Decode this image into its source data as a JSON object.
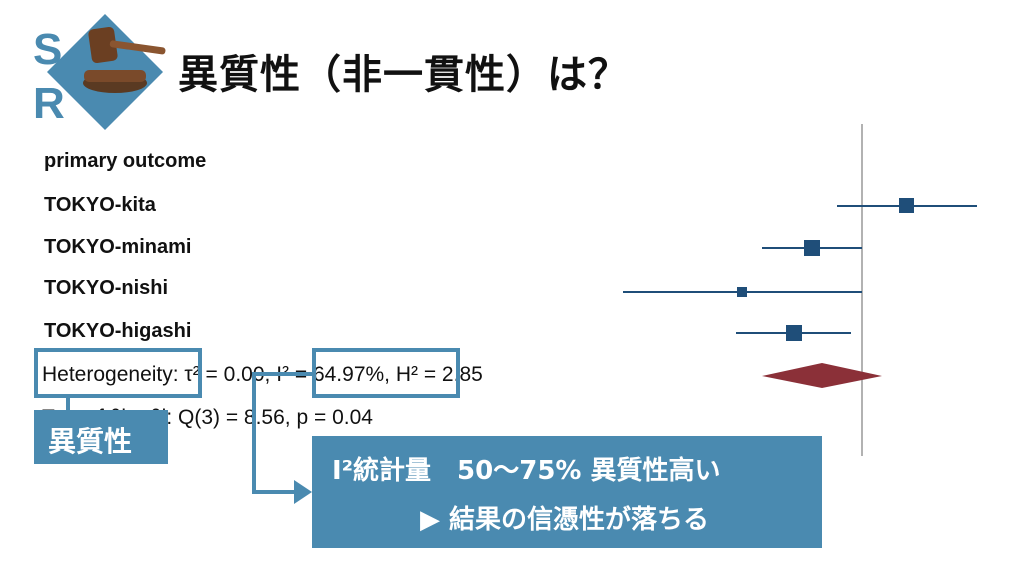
{
  "logo": {
    "letters": [
      "S",
      "R"
    ],
    "icon": "gavel-icon",
    "accent": "#4a8ab0"
  },
  "title": "異質性（非一貫性）は？",
  "forest": {
    "studies": [
      "primary outcome",
      "TOKYO-kita",
      "TOKYO-minami",
      "TOKYO-nishi",
      "TOKYO-higashi"
    ],
    "heterogeneity_line": {
      "label": "Heterogeneity",
      "tau": ": τ² = 0.00, ",
      "i2": "I² = 64.97%",
      "h2": ", H² = 2.85"
    },
    "test_line": "Test of θi = θj: Q(3) = 8.56, p = 0.04",
    "marker_color": "#1f4e79",
    "diamond_color": "#8b3038"
  },
  "callouts": {
    "heterogeneity_label": "異質性",
    "i2_line1": "I²統計量　50〜75% 異質性高い",
    "i2_line2": "▶ 結果の信憑性が落ちる"
  }
}
